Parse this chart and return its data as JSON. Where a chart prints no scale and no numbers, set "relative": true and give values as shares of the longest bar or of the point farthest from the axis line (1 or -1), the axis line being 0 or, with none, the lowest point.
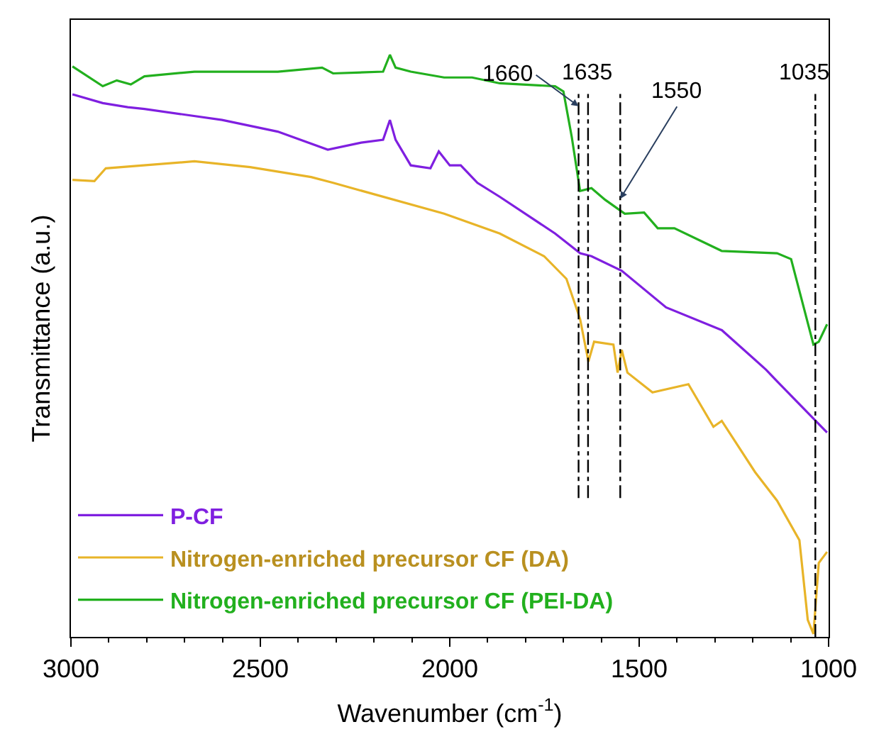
{
  "chart_data": {
    "type": "line",
    "relative": true,
    "xlabel": "Wavenumber (cm$^{-1}$)",
    "ylabel": "Transmittance (a.u.)",
    "xlim": [
      3000,
      1000
    ],
    "xticks": [
      3000,
      2500,
      2000,
      1500,
      1000
    ],
    "legend": "bottom left",
    "line_style": "solid",
    "marker": "none",
    "series": [
      {
        "name": "P-CF",
        "color": "#7f1fe0",
        "x": [
          2996,
          2916,
          2850,
          2806,
          2601,
          2454,
          2322,
          2234,
          2176,
          2158,
          2143,
          2103,
          2051,
          2029,
          2000,
          1971,
          1927,
          1868,
          1722,
          1656,
          1626,
          1546,
          1429,
          1282,
          1165,
          1136,
          1004
        ],
        "values": [
          0.932,
          0.917,
          0.91,
          0.907,
          0.888,
          0.868,
          0.837,
          0.849,
          0.854,
          0.888,
          0.854,
          0.81,
          0.805,
          0.834,
          0.81,
          0.81,
          0.78,
          0.756,
          0.693,
          0.659,
          0.654,
          0.629,
          0.566,
          0.527,
          0.459,
          0.439,
          0.351
        ]
      },
      {
        "name": "Nitrogen-enriched precursor CF (DA)",
        "color": "#e8b428",
        "x": [
          2996,
          2938,
          2908,
          2674,
          2527,
          2366,
          2308,
          2015,
          1868,
          1751,
          1692,
          1656,
          1634,
          1619,
          1568,
          1557,
          1546,
          1531,
          1465,
          1370,
          1304,
          1282,
          1194,
          1136,
          1077,
          1055,
          1040,
          1026,
          1004
        ],
        "values": [
          0.785,
          0.783,
          0.805,
          0.817,
          0.807,
          0.79,
          0.78,
          0.727,
          0.693,
          0.654,
          0.615,
          0.546,
          0.473,
          0.507,
          0.502,
          0.454,
          0.493,
          0.454,
          0.42,
          0.434,
          0.361,
          0.371,
          0.283,
          0.234,
          0.166,
          0.029,
          0.005,
          0.127,
          0.146
        ]
      },
      {
        "name": "Nitrogen-enriched precursor CF (PEI-DA)",
        "color": "#22b01e",
        "x": [
          2996,
          2916,
          2879,
          2842,
          2806,
          2674,
          2454,
          2337,
          2308,
          2176,
          2158,
          2143,
          2103,
          2015,
          1941,
          1868,
          1722,
          1700,
          1678,
          1656,
          1626,
          1590,
          1538,
          1487,
          1451,
          1407,
          1282,
          1136,
          1099,
          1040,
          1026,
          1004
        ],
        "values": [
          0.98,
          0.946,
          0.956,
          0.949,
          0.963,
          0.971,
          0.971,
          0.978,
          0.968,
          0.971,
          1.0,
          0.978,
          0.971,
          0.961,
          0.961,
          0.951,
          0.946,
          0.937,
          0.859,
          0.766,
          0.771,
          0.751,
          0.727,
          0.729,
          0.702,
          0.702,
          0.663,
          0.659,
          0.649,
          0.502,
          0.507,
          0.537
        ]
      }
    ],
    "ref_lines": [
      {
        "axis": "x",
        "value": 1660,
        "label": "1660",
        "line_style": "dashdot",
        "color": "#000000"
      },
      {
        "axis": "x",
        "value": 1635,
        "label": "1635",
        "line_style": "dashdot",
        "color": "#000000"
      },
      {
        "axis": "x",
        "value": 1550,
        "label": "1550",
        "line_style": "dashdot",
        "color": "#000000"
      },
      {
        "axis": "x",
        "value": 1035,
        "label": "1035",
        "line_style": "dashdot",
        "color": "#000000"
      }
    ]
  }
}
